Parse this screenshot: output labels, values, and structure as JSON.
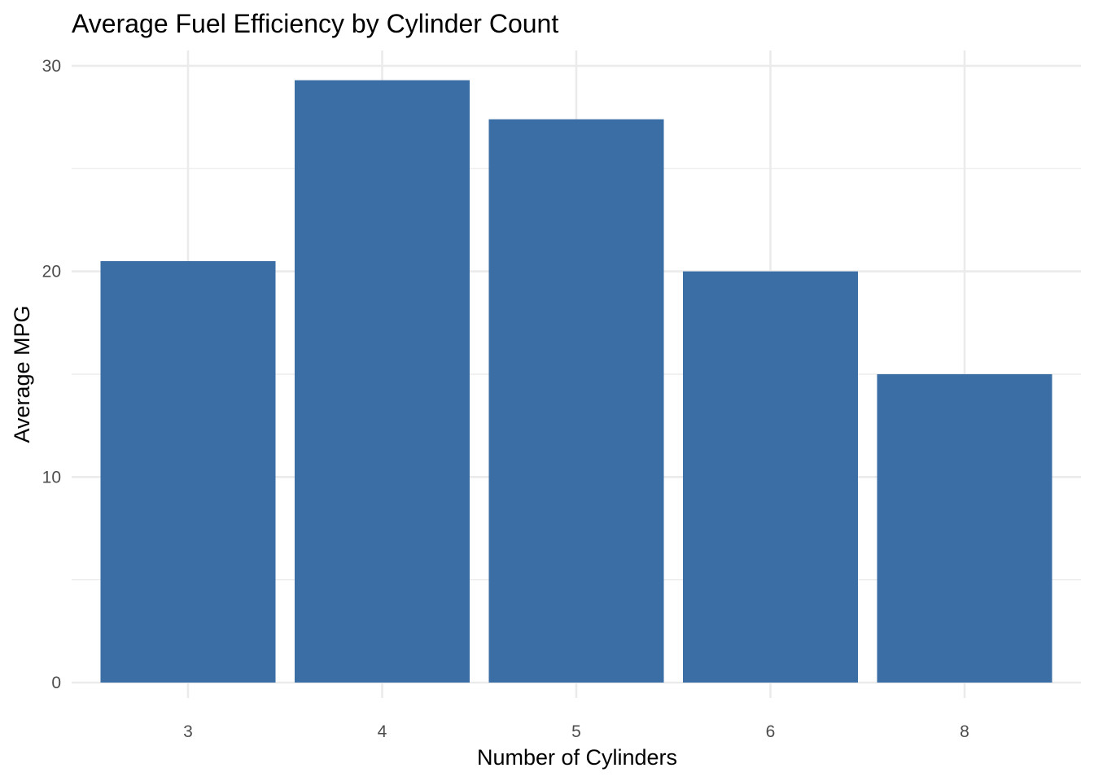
{
  "chart_data": {
    "type": "bar",
    "title": "Average Fuel Efficiency by Cylinder Count",
    "xlabel": "Number of Cylinders",
    "ylabel": "Average MPG",
    "categories": [
      "3",
      "4",
      "5",
      "6",
      "8"
    ],
    "values": [
      20.5,
      29.3,
      27.4,
      20.0,
      15.0
    ],
    "ylim": [
      0,
      30
    ],
    "y_ticks": [
      "0",
      "10",
      "20",
      "30"
    ],
    "grid": true,
    "bar_color": "#3a6ea5",
    "gridline_color": "#ebebeb"
  }
}
